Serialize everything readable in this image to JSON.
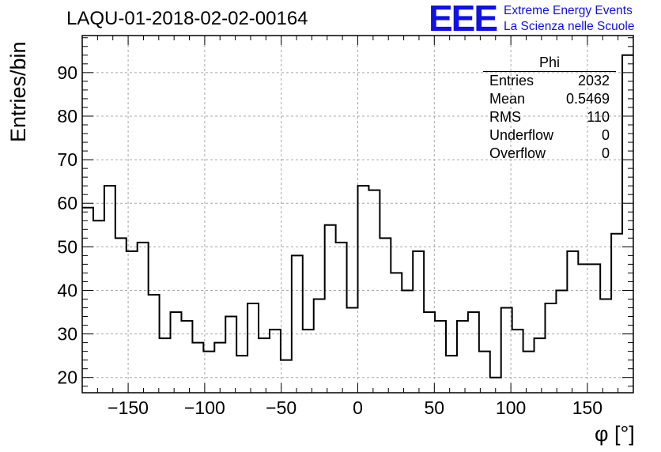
{
  "title": "LAQU-01-2018-02-02-00164",
  "logo": {
    "mark": "EEE",
    "line1": "Extreme Energy Events",
    "line2": "La Scienza nelle Scuole",
    "color": "#1010e8"
  },
  "stats": {
    "name": "Phi",
    "rows": [
      {
        "label": "Entries",
        "value": "2032"
      },
      {
        "label": "Mean",
        "value": "0.5469"
      },
      {
        "label": "RMS",
        "value": "110"
      },
      {
        "label": "Underflow",
        "value": "0"
      },
      {
        "label": "Overflow",
        "value": "0"
      }
    ]
  },
  "chart_data": {
    "type": "bar",
    "style": "step-histogram",
    "title": "LAQU-01-2018-02-02-00164",
    "xlabel": "φ [°]",
    "ylabel": "Entries/bin",
    "xlim": [
      -180,
      180
    ],
    "ylim": [
      16.5,
      98.5
    ],
    "bin_width": 7.2,
    "xticks": [
      -150,
      -100,
      -50,
      0,
      50,
      100,
      150
    ],
    "xtick_labels": [
      "−150",
      "−100",
      "−50",
      "0",
      "50",
      "100",
      "150"
    ],
    "yticks": [
      20,
      30,
      40,
      50,
      60,
      70,
      80,
      90
    ],
    "ytick_labels": [
      "20",
      "30",
      "40",
      "50",
      "60",
      "70",
      "80",
      "90"
    ],
    "grid": true,
    "values": [
      59,
      56,
      64,
      52,
      49,
      51,
      39,
      29,
      35,
      33,
      28,
      26,
      28,
      34,
      25,
      37,
      29,
      31,
      24,
      48,
      31,
      38,
      55,
      51,
      36,
      64,
      63,
      52,
      44,
      40,
      49,
      35,
      33,
      25,
      33,
      35,
      26,
      20,
      36,
      31,
      26,
      29,
      37,
      40,
      49,
      46,
      46,
      38,
      53,
      94
    ]
  }
}
